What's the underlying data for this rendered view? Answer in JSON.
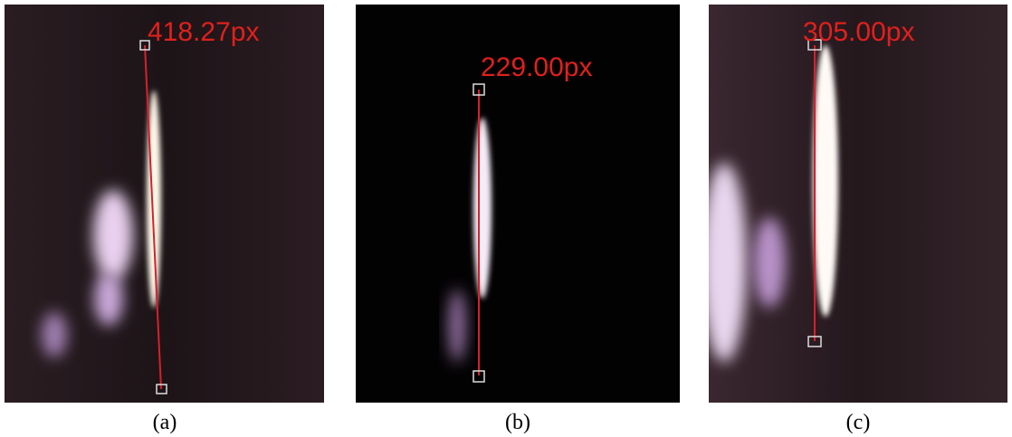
{
  "panels": [
    {
      "measurement": "418.27px",
      "caption": "(a)"
    },
    {
      "measurement": "229.00px",
      "caption": "(b)"
    },
    {
      "measurement": "305.00px",
      "caption": "(c)"
    }
  ]
}
